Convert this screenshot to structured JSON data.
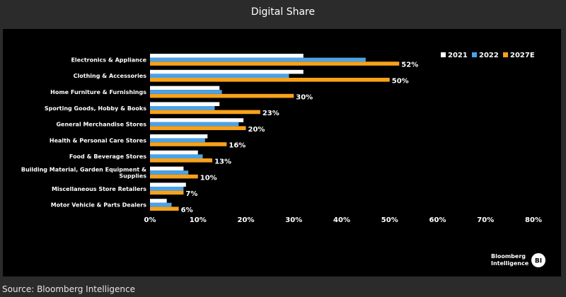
{
  "header": {
    "title": "Digital Share"
  },
  "footer": {
    "source": "Source: Bloomberg Intelligence"
  },
  "brand": {
    "line1": "Bloomberg",
    "line2": "Intelligence",
    "badge": "BI"
  },
  "chart_data": {
    "type": "bar",
    "orientation": "horizontal",
    "categories": [
      [
        "Electronics & Appliance"
      ],
      [
        "Clothing & Accessories"
      ],
      [
        "Home Furniture & Furnishings"
      ],
      [
        "Sporting Goods, Hobby & Books"
      ],
      [
        "General Merchandise Stores"
      ],
      [
        "Health & Personal Care Stores"
      ],
      [
        "Food & Beverage Stores"
      ],
      [
        "Building Material, Garden Equipment &",
        "Supplies"
      ],
      [
        "Miscellaneous Store Retailers"
      ],
      [
        "Motor Vehicle & Parts Dealers"
      ]
    ],
    "series": [
      {
        "name": "2021",
        "color": "#ffffff",
        "values": [
          32,
          32,
          14.5,
          14.5,
          19.5,
          12,
          10,
          7,
          7.5,
          3.5
        ]
      },
      {
        "name": "2022",
        "color": "#4aa3e8",
        "values": [
          45,
          29,
          15,
          13.5,
          18.5,
          11.5,
          11,
          8,
          7,
          4.5
        ]
      },
      {
        "name": "2027E",
        "color": "#f7a21b",
        "values": [
          52,
          50,
          30,
          23,
          20,
          16,
          13,
          10,
          7,
          6
        ]
      }
    ],
    "data_labels": [
      "52%",
      "50%",
      "30%",
      "23%",
      "20%",
      "16%",
      "13%",
      "10%",
      "7%",
      "6%"
    ],
    "xlim": [
      0,
      80
    ],
    "xticks": [
      0,
      10,
      20,
      30,
      40,
      50,
      60,
      70,
      80
    ],
    "xtick_labels": [
      "0%",
      "10%",
      "20%",
      "30%",
      "40%",
      "50%",
      "60%",
      "70%",
      "80%"
    ],
    "grid": false,
    "legend_position": "top-right"
  }
}
